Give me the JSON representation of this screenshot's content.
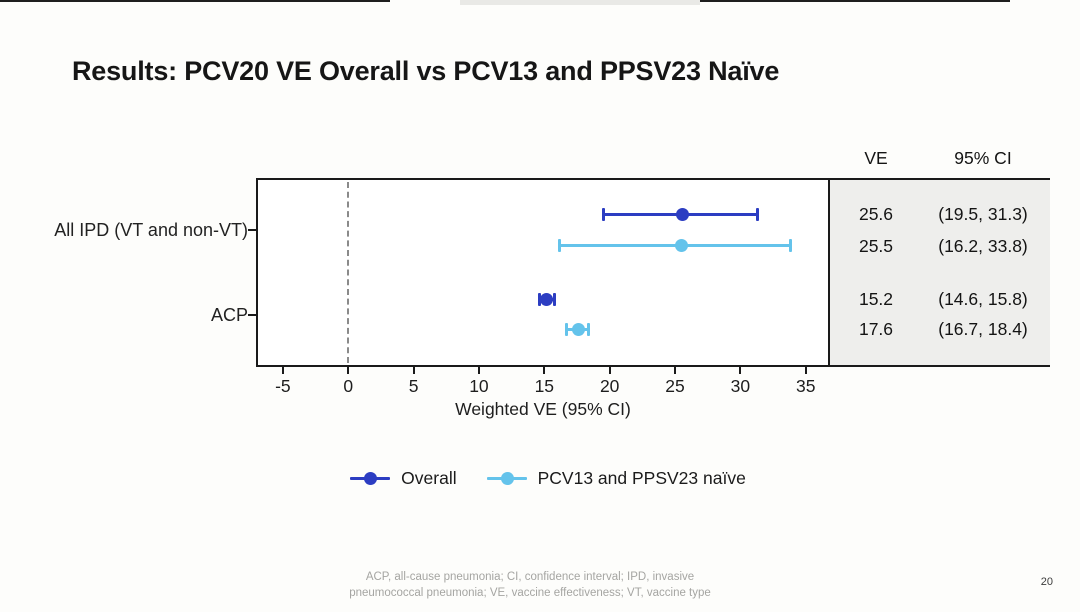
{
  "slide": {
    "title": "Results: PCV20 VE Overall vs PCV13 and PPSV23 Naïve",
    "footnote_line1": "ACP, all-cause pneumonia; CI, confidence interval; IPD, invasive",
    "footnote_line2": "pneumococcal pneumonia; VE, vaccine effectiveness; VT, vaccine type",
    "page_number": "20"
  },
  "chart_data": {
    "type": "scatter",
    "subtype": "forest-plot-with-error-bars",
    "title": "",
    "xlabel": "Weighted VE (95% CI)",
    "ylabel": "",
    "xlim": [
      -6.9,
      36.7
    ],
    "x_ticks": [
      -5,
      0,
      5,
      10,
      15,
      20,
      25,
      30,
      35
    ],
    "zero_line": 0,
    "grid": false,
    "legend_position": "bottom",
    "categories": [
      "All IPD (VT and non-VT)",
      "ACP"
    ],
    "colors": {
      "overall": "#2c3dc2",
      "naive": "#64c3eb"
    },
    "points": [
      {
        "group": "All IPD (VT and non-VT)",
        "series": "Overall",
        "ve": 25.6,
        "ci_low": 19.5,
        "ci_high": 31.3,
        "color_key": "overall"
      },
      {
        "group": "All IPD (VT and non-VT)",
        "series": "PCV13 and PPSV23 naïve",
        "ve": 25.5,
        "ci_low": 16.2,
        "ci_high": 33.8,
        "color_key": "naive"
      },
      {
        "group": "ACP",
        "series": "Overall",
        "ve": 15.2,
        "ci_low": 14.6,
        "ci_high": 15.8,
        "color_key": "overall"
      },
      {
        "group": "ACP",
        "series": "PCV13 and PPSV23 naïve",
        "ve": 17.6,
        "ci_low": 16.7,
        "ci_high": 18.4,
        "color_key": "naive"
      }
    ],
    "table": {
      "headers": [
        "VE",
        "95% CI"
      ],
      "rows": [
        [
          "25.6",
          "(19.5, 31.3)"
        ],
        [
          "25.5",
          "(16.2, 33.8)"
        ],
        [
          "15.2",
          "(14.6, 15.8)"
        ],
        [
          "17.6",
          "(16.7, 18.4)"
        ]
      ]
    },
    "legend": [
      {
        "label": "Overall",
        "color_key": "overall"
      },
      {
        "label": "PCV13 and PPSV23 naïve",
        "color_key": "naive"
      }
    ]
  }
}
